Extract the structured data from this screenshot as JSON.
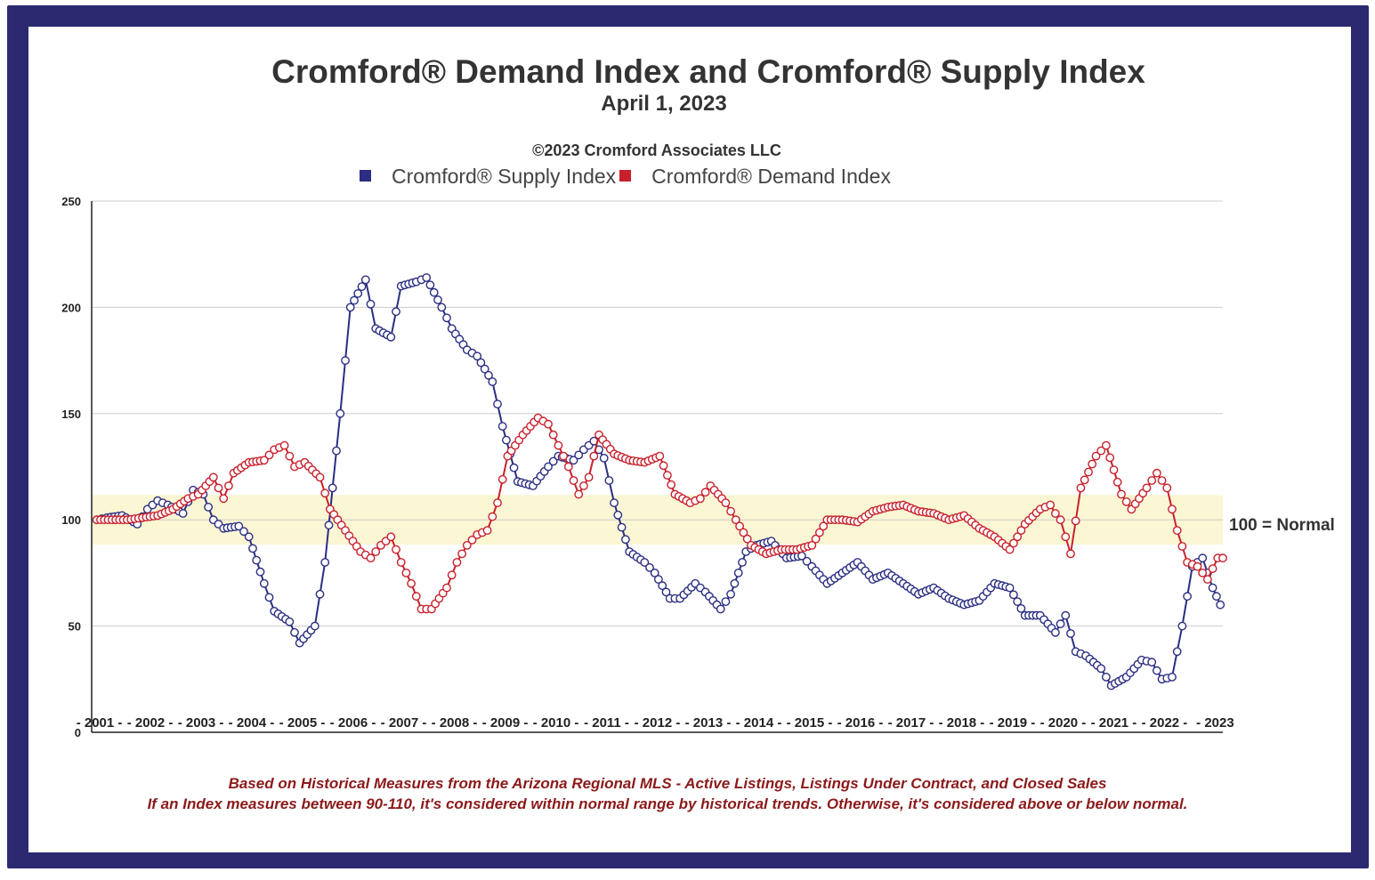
{
  "chart_data": {
    "type": "line",
    "title": "Cromford® Demand Index and Cromford® Supply Index",
    "subtitle": "April 1, 2023",
    "copyright": "©2023 Cromford Associates LLC",
    "ylim": [
      0,
      250
    ],
    "yticks": [
      0,
      50,
      100,
      150,
      200,
      250
    ],
    "xlim": [
      2000.9,
      2023.2
    ],
    "x_labels": [
      "- 2001 -",
      "- 2002 -",
      "- 2003 -",
      "- 2004 -",
      "- 2005 -",
      "- 2006 -",
      "- 2007 -",
      "- 2008 -",
      "- 2009 -",
      "- 2010 -",
      "- 2011 -",
      "- 2012 -",
      "- 2013 -",
      "- 2014 -",
      "- 2015 -",
      "- 2016 -",
      "- 2017 -",
      "- 2018 -",
      "- 2019 -",
      "- 2020 -",
      "- 2021 -",
      "- 2022 -",
      "- 2023"
    ],
    "year_ticks": [
      2001,
      2002,
      2003,
      2004,
      2005,
      2006,
      2007,
      2008,
      2009,
      2010,
      2011,
      2012,
      2013,
      2014,
      2015,
      2016,
      2017,
      2018,
      2019,
      2020,
      2021,
      2022,
      2023
    ],
    "normal_band": [
      90,
      110
    ],
    "normal_label": "100 = Normal",
    "grid": true,
    "legend_position": "top",
    "series": [
      {
        "name": "Cromford® Supply Index",
        "color": "#2b2e82",
        "x": [
          2001.0,
          2001.2,
          2001.5,
          2001.8,
          2002.0,
          2002.2,
          2002.4,
          2002.7,
          2002.9,
          2003.1,
          2003.3,
          2003.5,
          2003.8,
          2004.0,
          2004.3,
          2004.5,
          2004.8,
          2005.0,
          2005.3,
          2005.5,
          2005.8,
          2006.0,
          2006.3,
          2006.5,
          2006.8,
          2007.0,
          2007.3,
          2007.5,
          2007.8,
          2008.0,
          2008.3,
          2008.5,
          2008.8,
          2009.0,
          2009.3,
          2009.6,
          2009.9,
          2010.1,
          2010.4,
          2010.6,
          2010.8,
          2011.0,
          2011.2,
          2011.5,
          2011.8,
          2012.0,
          2012.3,
          2012.5,
          2012.8,
          2013.0,
          2013.3,
          2013.5,
          2013.8,
          2014.0,
          2014.3,
          2014.6,
          2014.9,
          2015.1,
          2015.4,
          2015.7,
          2016.0,
          2016.3,
          2016.6,
          2016.9,
          2017.2,
          2017.5,
          2017.8,
          2018.1,
          2018.4,
          2018.7,
          2019.0,
          2019.3,
          2019.6,
          2019.9,
          2020.1,
          2020.3,
          2020.5,
          2020.8,
          2021.0,
          2021.3,
          2021.6,
          2021.8,
          2022.0,
          2022.2,
          2022.4,
          2022.6,
          2022.8,
          2023.0,
          2023.15
        ],
        "values": [
          100,
          101,
          102,
          98,
          105,
          109,
          107,
          103,
          114,
          112,
          100,
          96,
          97,
          92,
          70,
          57,
          52,
          42,
          50,
          80,
          150,
          200,
          213,
          190,
          186,
          210,
          212,
          214,
          200,
          190,
          180,
          177,
          165,
          144,
          118,
          116,
          125,
          130,
          128,
          133,
          137,
          129,
          108,
          85,
          80,
          75,
          63,
          63,
          70,
          66,
          58,
          65,
          85,
          88,
          90,
          82,
          83,
          78,
          70,
          75,
          80,
          72,
          75,
          70,
          65,
          68,
          63,
          60,
          62,
          70,
          68,
          55,
          55,
          47,
          55,
          38,
          36,
          30,
          22,
          26,
          34,
          33,
          25,
          26,
          50,
          78,
          82,
          68,
          60
        ]
      },
      {
        "name": "Cromford® Demand Index",
        "color": "#c8202b",
        "x": [
          2001.0,
          2001.3,
          2001.6,
          2001.9,
          2002.2,
          2002.5,
          2002.8,
          2003.0,
          2003.3,
          2003.5,
          2003.7,
          2004.0,
          2004.3,
          2004.5,
          2004.7,
          2004.9,
          2005.1,
          2005.4,
          2005.6,
          2005.9,
          2006.2,
          2006.4,
          2006.6,
          2006.8,
          2007.0,
          2007.2,
          2007.4,
          2007.6,
          2007.9,
          2008.1,
          2008.3,
          2008.5,
          2008.7,
          2008.9,
          2009.1,
          2009.4,
          2009.7,
          2009.9,
          2010.1,
          2010.3,
          2010.5,
          2010.7,
          2010.9,
          2011.2,
          2011.5,
          2011.8,
          2012.1,
          2012.4,
          2012.7,
          2012.9,
          2013.1,
          2013.4,
          2013.6,
          2013.9,
          2014.2,
          2014.5,
          2014.8,
          2015.1,
          2015.4,
          2015.7,
          2016.0,
          2016.3,
          2016.6,
          2016.9,
          2017.2,
          2017.5,
          2017.8,
          2018.1,
          2018.4,
          2018.7,
          2019.0,
          2019.3,
          2019.6,
          2019.8,
          2019.9,
          2020.0,
          2020.2,
          2020.4,
          2020.7,
          2020.9,
          2021.2,
          2021.4,
          2021.7,
          2021.9,
          2022.1,
          2022.3,
          2022.5,
          2022.7,
          2022.9,
          2023.1,
          2023.2
        ],
        "values": [
          100,
          100,
          100,
          101,
          102,
          105,
          110,
          112,
          120,
          110,
          122,
          127,
          128,
          133,
          135,
          125,
          127,
          120,
          105,
          95,
          85,
          82,
          88,
          92,
          80,
          70,
          58,
          58,
          68,
          80,
          88,
          93,
          95,
          108,
          130,
          140,
          148,
          145,
          135,
          125,
          112,
          120,
          140,
          131,
          128,
          127,
          130,
          112,
          108,
          110,
          116,
          108,
          100,
          88,
          84,
          86,
          86,
          88,
          100,
          100,
          99,
          104,
          106,
          107,
          104,
          103,
          100,
          102,
          96,
          92,
          86,
          98,
          105,
          107,
          103,
          100,
          84,
          115,
          130,
          135,
          112,
          105,
          115,
          122,
          115,
          95,
          80,
          78,
          72,
          82,
          82
        ]
      }
    ]
  },
  "footnotes": {
    "line1": "Based on Historical Measures from the Arizona Regional MLS - Active Listings, Listings Under Contract, and Closed Sales",
    "line2": "If an Index measures between 90-110, it's considered within normal range by historical trends. Otherwise, it's considered above or below normal."
  },
  "colors": {
    "frame": "#2b2970",
    "band": "#fbf6d3",
    "grid": "#cccccc"
  }
}
